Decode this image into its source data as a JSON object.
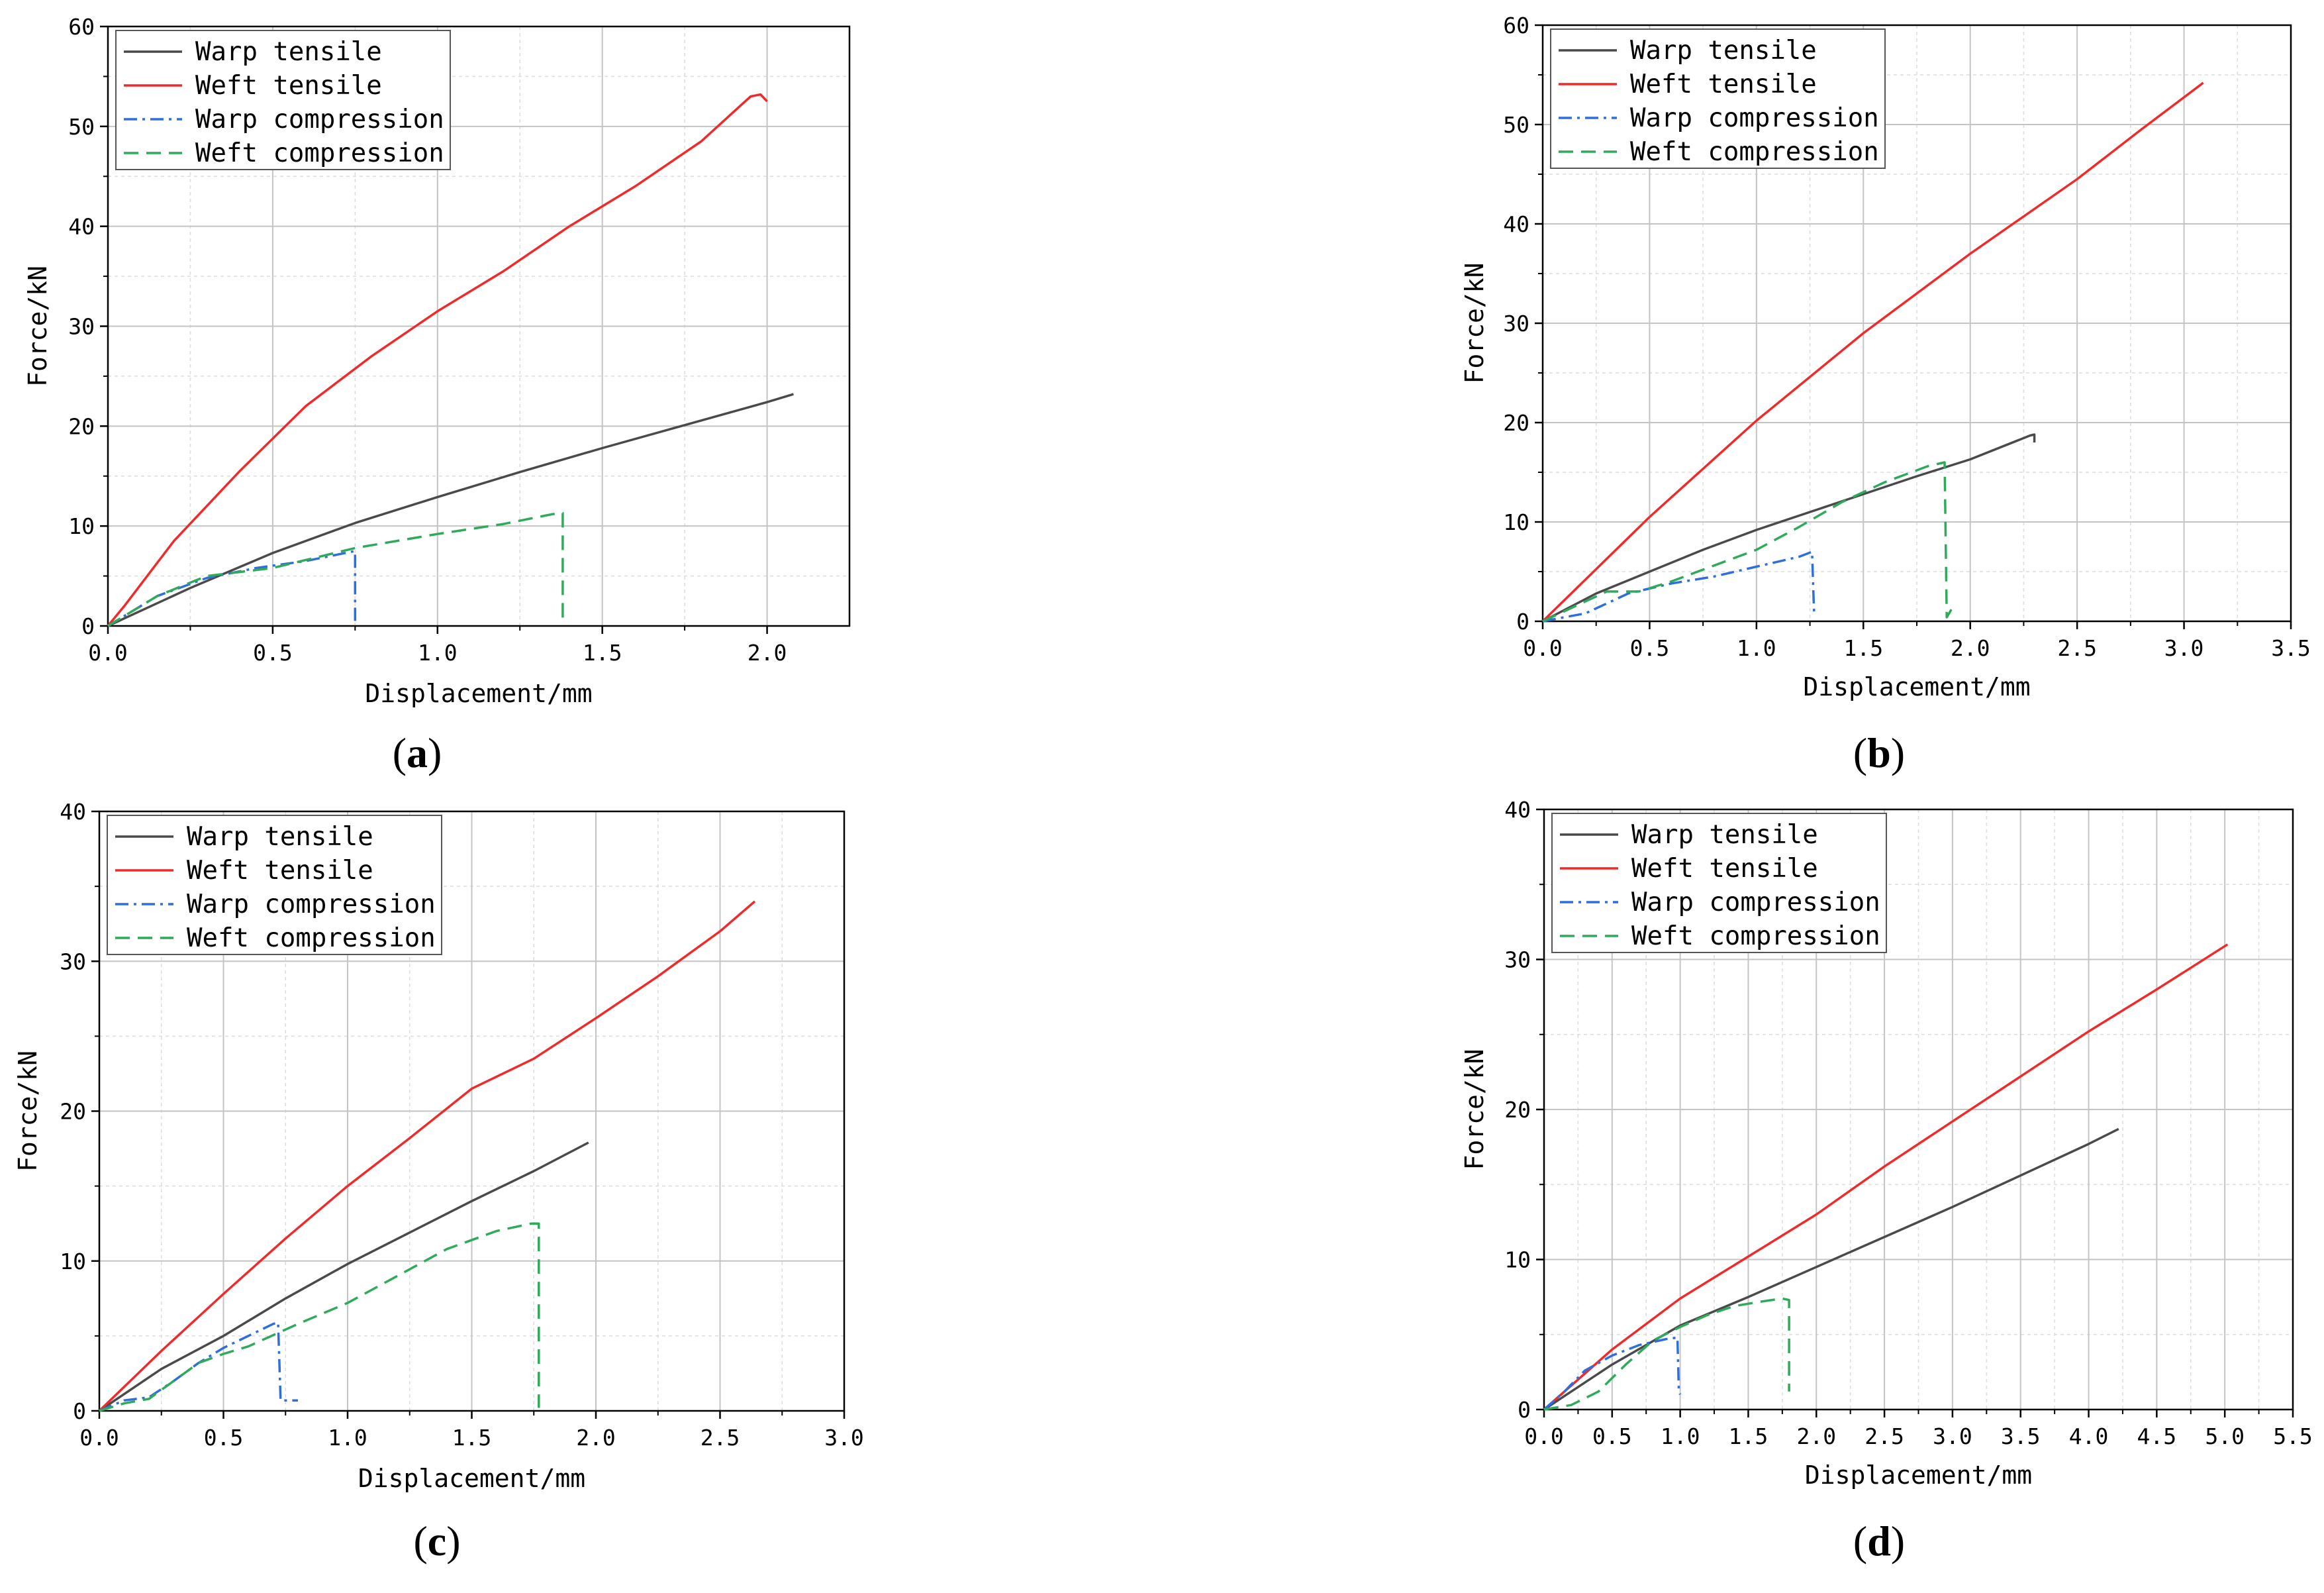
{
  "figure": {
    "series_styles": [
      {
        "name": "Warp tensile",
        "color": "#4a4a4a",
        "dash": "none"
      },
      {
        "name": "Weft tensile",
        "color": "#ee2a2a",
        "dash": "none"
      },
      {
        "name": "Warp compression",
        "color": "#2f6fdc",
        "dash": "dashdot"
      },
      {
        "name": "Weft compression",
        "color": "#2faa5a",
        "dash": "dash"
      }
    ]
  },
  "chart_data": [
    {
      "id": "a",
      "type": "line",
      "caption": {
        "open": "(",
        "letter": "a",
        "close": ")"
      },
      "xlabel": "Displacement/mm",
      "ylabel": "Force/kN",
      "xlim": [
        0,
        2.25
      ],
      "ylim": [
        0,
        60
      ],
      "xticks": [
        "0.0",
        "0.5",
        "1.0",
        "1.5",
        "2.0"
      ],
      "xtick_values": [
        0,
        0.5,
        1.0,
        1.5,
        2.0
      ],
      "yticks": [
        "0",
        "10",
        "20",
        "30",
        "40",
        "50",
        "60"
      ],
      "ytick_values": [
        0,
        10,
        20,
        30,
        40,
        50,
        60
      ],
      "legend_position": "top-left",
      "series": [
        {
          "name": "Warp tensile",
          "x": [
            0,
            0.25,
            0.5,
            0.75,
            1.0,
            1.25,
            1.5,
            1.75,
            2.0,
            2.08
          ],
          "y": [
            0,
            3.8,
            7.3,
            10.3,
            12.9,
            15.4,
            17.8,
            20.1,
            22.4,
            23.2
          ]
        },
        {
          "name": "Weft tensile",
          "x": [
            0,
            0.05,
            0.2,
            0.4,
            0.6,
            0.8,
            1.0,
            1.2,
            1.4,
            1.6,
            1.8,
            1.9,
            1.95,
            1.98,
            2.0
          ],
          "y": [
            0,
            2.0,
            8.5,
            15.5,
            22.0,
            27.0,
            31.5,
            35.5,
            40.0,
            44.0,
            48.5,
            51.5,
            53.0,
            53.2,
            52.5
          ]
        },
        {
          "name": "Warp compression",
          "x": [
            0,
            0.05,
            0.15,
            0.3,
            0.45,
            0.6,
            0.72,
            0.75,
            0.75
          ],
          "y": [
            0,
            1.0,
            3.0,
            4.8,
            5.8,
            6.5,
            7.3,
            7.5,
            0.5
          ]
        },
        {
          "name": "Weft compression",
          "x": [
            0,
            0.05,
            0.15,
            0.3,
            0.5,
            0.75,
            1.0,
            1.2,
            1.35,
            1.38,
            1.38
          ],
          "y": [
            0,
            1.0,
            3.0,
            5.0,
            5.8,
            7.8,
            9.2,
            10.2,
            11.2,
            11.3,
            0.3
          ]
        }
      ]
    },
    {
      "id": "b",
      "type": "line",
      "caption": {
        "open": "(",
        "letter": "b",
        "close": ")"
      },
      "xlabel": "Displacement/mm",
      "ylabel": "Force/kN",
      "xlim": [
        0,
        3.5
      ],
      "ylim": [
        0,
        60
      ],
      "xticks": [
        "0.0",
        "0.5",
        "1.0",
        "1.5",
        "2.0",
        "2.5",
        "3.0",
        "3.5"
      ],
      "xtick_values": [
        0,
        0.5,
        1.0,
        1.5,
        2.0,
        2.5,
        3.0,
        3.5
      ],
      "yticks": [
        "0",
        "10",
        "20",
        "30",
        "40",
        "50",
        "60"
      ],
      "ytick_values": [
        0,
        10,
        20,
        30,
        40,
        50,
        60
      ],
      "legend_position": "top-left",
      "series": [
        {
          "name": "Warp tensile",
          "x": [
            0,
            0.25,
            0.5,
            0.75,
            1.0,
            1.25,
            1.5,
            1.75,
            2.0,
            2.28,
            2.3,
            2.3
          ],
          "y": [
            0,
            2.8,
            5.0,
            7.2,
            9.2,
            11.0,
            12.8,
            14.6,
            16.3,
            18.7,
            18.8,
            18.0
          ]
        },
        {
          "name": "Weft tensile",
          "x": [
            0,
            0.5,
            1.0,
            1.5,
            2.0,
            2.5,
            2.8,
            3.09
          ],
          "y": [
            0,
            10.5,
            20.2,
            29.0,
            37.0,
            44.5,
            49.5,
            54.2
          ]
        },
        {
          "name": "Warp compression",
          "x": [
            0,
            0.2,
            0.4,
            0.6,
            0.8,
            1.0,
            1.2,
            1.26,
            1.27
          ],
          "y": [
            0,
            0.8,
            2.8,
            3.8,
            4.5,
            5.5,
            6.5,
            7.0,
            0.5
          ]
        },
        {
          "name": "Weft compression",
          "x": [
            0,
            0.15,
            0.3,
            0.45,
            0.6,
            0.8,
            1.0,
            1.2,
            1.4,
            1.6,
            1.8,
            1.88,
            1.89,
            1.92
          ],
          "y": [
            0,
            1.5,
            3.0,
            3.0,
            4.0,
            5.6,
            7.2,
            9.5,
            12.0,
            14.0,
            15.6,
            16.0,
            0.4,
            1.5
          ]
        }
      ]
    },
    {
      "id": "c",
      "type": "line",
      "caption": {
        "open": "(",
        "letter": "c",
        "close": ")"
      },
      "xlabel": "Displacement/mm",
      "ylabel": "Force/kN",
      "xlim": [
        0,
        3.0
      ],
      "ylim": [
        0,
        40
      ],
      "xticks": [
        "0.0",
        "0.5",
        "1.0",
        "1.5",
        "2.0",
        "2.5",
        "3.0"
      ],
      "xtick_values": [
        0,
        0.5,
        1.0,
        1.5,
        2.0,
        2.5,
        3.0
      ],
      "yticks": [
        "0",
        "10",
        "20",
        "30",
        "40"
      ],
      "ytick_values": [
        0,
        10,
        20,
        30,
        40
      ],
      "legend_position": "top-left",
      "series": [
        {
          "name": "Warp tensile",
          "x": [
            0,
            0.25,
            0.5,
            0.75,
            1.0,
            1.25,
            1.5,
            1.75,
            1.97
          ],
          "y": [
            0,
            2.8,
            5.0,
            7.5,
            9.8,
            11.9,
            14.0,
            16.0,
            17.9
          ]
        },
        {
          "name": "Weft tensile",
          "x": [
            0,
            0.25,
            0.5,
            0.75,
            1.0,
            1.25,
            1.5,
            1.75,
            2.0,
            2.25,
            2.5,
            2.64
          ],
          "y": [
            0,
            4.0,
            7.8,
            11.5,
            15.0,
            18.2,
            21.5,
            23.5,
            26.2,
            29.0,
            32.0,
            34.0
          ]
        },
        {
          "name": "Warp compression",
          "x": [
            0,
            0.1,
            0.2,
            0.3,
            0.4,
            0.5,
            0.6,
            0.7,
            0.72,
            0.73,
            0.8
          ],
          "y": [
            0,
            0.7,
            0.9,
            2.0,
            3.2,
            4.2,
            5.0,
            5.8,
            5.9,
            0.7,
            0.7
          ]
        },
        {
          "name": "Weft compression",
          "x": [
            0,
            0.1,
            0.2,
            0.3,
            0.4,
            0.5,
            0.6,
            0.8,
            1.0,
            1.2,
            1.4,
            1.6,
            1.74,
            1.77,
            1.77
          ],
          "y": [
            0,
            0.5,
            0.8,
            2.0,
            3.2,
            3.8,
            4.3,
            5.8,
            7.2,
            9.0,
            10.8,
            12.0,
            12.5,
            12.5,
            0.2
          ]
        }
      ]
    },
    {
      "id": "d",
      "type": "line",
      "caption": {
        "open": "(",
        "letter": "d",
        "close": ")"
      },
      "xlabel": "Displacement/mm",
      "ylabel": "Force/kN",
      "xlim": [
        0,
        5.5
      ],
      "ylim": [
        0,
        40
      ],
      "xticks": [
        "0.0",
        "0.5",
        "1.0",
        "1.5",
        "2.0",
        "2.5",
        "3.0",
        "3.5",
        "4.0",
        "4.5",
        "5.0",
        "5.5"
      ],
      "xtick_values": [
        0,
        0.5,
        1.0,
        1.5,
        2.0,
        2.5,
        3.0,
        3.5,
        4.0,
        4.5,
        5.0,
        5.5
      ],
      "yticks": [
        "0",
        "10",
        "20",
        "30",
        "40"
      ],
      "ytick_values": [
        0,
        10,
        20,
        30,
        40
      ],
      "legend_position": "top-left",
      "series": [
        {
          "name": "Warp tensile",
          "x": [
            0,
            0.5,
            1.0,
            1.5,
            2.0,
            2.5,
            3.0,
            3.5,
            4.0,
            4.22
          ],
          "y": [
            0,
            3.0,
            5.6,
            7.5,
            9.5,
            11.5,
            13.5,
            15.6,
            17.7,
            18.7
          ]
        },
        {
          "name": "Weft tensile",
          "x": [
            0,
            0.5,
            1.0,
            1.5,
            2.0,
            2.5,
            3.0,
            3.5,
            4.0,
            4.5,
            5.02
          ],
          "y": [
            0,
            4.0,
            7.4,
            10.2,
            13.0,
            16.2,
            19.2,
            22.2,
            25.2,
            28.0,
            31.0
          ]
        },
        {
          "name": "Warp compression",
          "x": [
            0,
            0.15,
            0.3,
            0.5,
            0.7,
            0.9,
            0.98,
            0.99,
            1.0
          ],
          "y": [
            0,
            1.2,
            2.6,
            3.6,
            4.3,
            4.7,
            4.8,
            1.2,
            1.0
          ]
        },
        {
          "name": "Weft compression",
          "x": [
            0,
            0.2,
            0.4,
            0.6,
            0.8,
            1.0,
            1.2,
            1.4,
            1.6,
            1.75,
            1.8,
            1.8
          ],
          "y": [
            0,
            0.3,
            1.2,
            3.0,
            4.6,
            5.5,
            6.3,
            6.9,
            7.2,
            7.4,
            7.3,
            1.2
          ]
        }
      ]
    }
  ]
}
